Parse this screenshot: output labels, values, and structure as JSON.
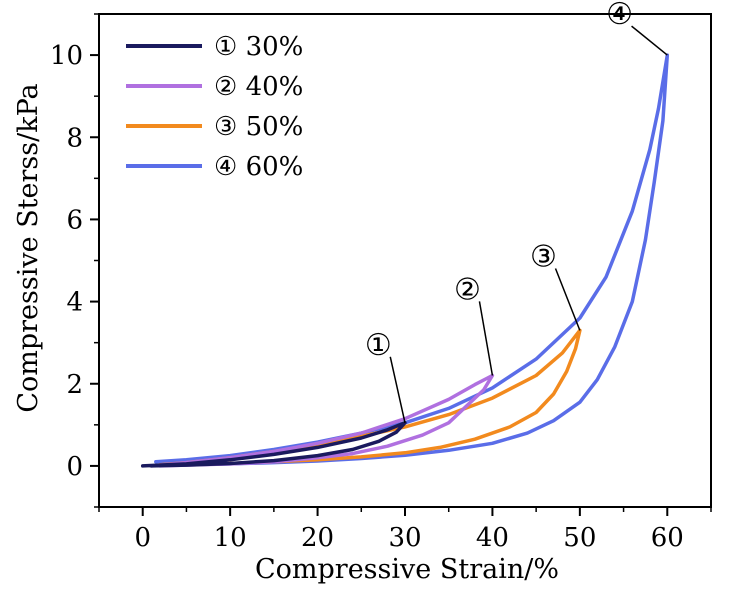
{
  "chart_data": {
    "type": "line",
    "xlabel": "Compressive Strain/%",
    "ylabel": "Compressive Sterss/kPa",
    "xlim": [
      -5,
      65
    ],
    "ylim": [
      -1,
      11
    ],
    "x_ticks": [
      "0",
      "10",
      "20",
      "30",
      "40",
      "50",
      "60"
    ],
    "y_ticks": [
      "0",
      "2",
      "4",
      "6",
      "8",
      "10"
    ],
    "grid": false,
    "legend_position": "top-left",
    "series": [
      {
        "name": "① 30%",
        "label": "①",
        "color": "#1a1a5e",
        "loading": [
          [
            0,
            0
          ],
          [
            5,
            0.05
          ],
          [
            10,
            0.15
          ],
          [
            15,
            0.28
          ],
          [
            20,
            0.45
          ],
          [
            25,
            0.68
          ],
          [
            28,
            0.88
          ],
          [
            30,
            1.05
          ]
        ],
        "unloading": [
          [
            30,
            1.05
          ],
          [
            29,
            0.82
          ],
          [
            27,
            0.6
          ],
          [
            24,
            0.4
          ],
          [
            20,
            0.25
          ],
          [
            15,
            0.13
          ],
          [
            10,
            0.06
          ],
          [
            5,
            0.02
          ],
          [
            1,
            0
          ]
        ]
      },
      {
        "name": "② 40%",
        "label": "②",
        "color": "#b070e0",
        "loading": [
          [
            1,
            0
          ],
          [
            5,
            0.08
          ],
          [
            10,
            0.2
          ],
          [
            15,
            0.35
          ],
          [
            20,
            0.55
          ],
          [
            25,
            0.8
          ],
          [
            30,
            1.15
          ],
          [
            35,
            1.62
          ],
          [
            38,
            1.98
          ],
          [
            40,
            2.2
          ]
        ],
        "unloading": [
          [
            40,
            2.2
          ],
          [
            39,
            1.85
          ],
          [
            37,
            1.45
          ],
          [
            35,
            1.05
          ],
          [
            32,
            0.75
          ],
          [
            28,
            0.48
          ],
          [
            24,
            0.3
          ],
          [
            20,
            0.2
          ],
          [
            15,
            0.1
          ],
          [
            10,
            0.05
          ],
          [
            5,
            0.02
          ],
          [
            2,
            0
          ]
        ]
      },
      {
        "name": "③ 50%",
        "label": "③",
        "color": "#f28a1e",
        "loading": [
          [
            2,
            0.03
          ],
          [
            5,
            0.08
          ],
          [
            10,
            0.2
          ],
          [
            15,
            0.35
          ],
          [
            20,
            0.52
          ],
          [
            25,
            0.72
          ],
          [
            30,
            0.95
          ],
          [
            35,
            1.25
          ],
          [
            40,
            1.65
          ],
          [
            45,
            2.2
          ],
          [
            48,
            2.75
          ],
          [
            50,
            3.3
          ]
        ],
        "unloading": [
          [
            50,
            3.3
          ],
          [
            49.5,
            2.85
          ],
          [
            48.5,
            2.3
          ],
          [
            47,
            1.75
          ],
          [
            45,
            1.3
          ],
          [
            42,
            0.95
          ],
          [
            38,
            0.65
          ],
          [
            34,
            0.45
          ],
          [
            30,
            0.32
          ],
          [
            25,
            0.22
          ],
          [
            20,
            0.15
          ],
          [
            15,
            0.1
          ],
          [
            10,
            0.06
          ],
          [
            5,
            0.03
          ],
          [
            3,
            0.02
          ]
        ]
      },
      {
        "name": "④ 60%",
        "label": "④",
        "color": "#5a6de8",
        "loading": [
          [
            1.5,
            0.1
          ],
          [
            5,
            0.15
          ],
          [
            10,
            0.25
          ],
          [
            15,
            0.4
          ],
          [
            20,
            0.58
          ],
          [
            25,
            0.8
          ],
          [
            30,
            1.05
          ],
          [
            35,
            1.4
          ],
          [
            40,
            1.9
          ],
          [
            45,
            2.6
          ],
          [
            50,
            3.6
          ],
          [
            53,
            4.6
          ],
          [
            56,
            6.2
          ],
          [
            58,
            7.7
          ],
          [
            59,
            8.7
          ],
          [
            60,
            10.0
          ]
        ],
        "unloading": [
          [
            60,
            10.0
          ],
          [
            59.5,
            8.4
          ],
          [
            58.5,
            6.9
          ],
          [
            57.5,
            5.5
          ],
          [
            56,
            4.0
          ],
          [
            54,
            2.9
          ],
          [
            52,
            2.1
          ],
          [
            50,
            1.55
          ],
          [
            47,
            1.1
          ],
          [
            44,
            0.8
          ],
          [
            40,
            0.55
          ],
          [
            35,
            0.38
          ],
          [
            30,
            0.26
          ],
          [
            25,
            0.18
          ],
          [
            20,
            0.12
          ],
          [
            15,
            0.08
          ],
          [
            10,
            0.05
          ],
          [
            5,
            0.03
          ],
          [
            2,
            0.02
          ]
        ]
      }
    ],
    "callouts": [
      {
        "label": "①",
        "point": [
          30,
          1.05
        ],
        "offset": [
          -2.6,
          1.8
        ]
      },
      {
        "label": "②",
        "point": [
          40,
          2.2
        ],
        "offset": [
          -2.4,
          2.0
        ]
      },
      {
        "label": "③",
        "point": [
          50,
          3.3
        ],
        "offset": [
          -3.7,
          1.7
        ]
      },
      {
        "label": "④",
        "point": [
          60,
          10.0
        ],
        "offset": [
          -5.0,
          0.9
        ]
      }
    ]
  }
}
